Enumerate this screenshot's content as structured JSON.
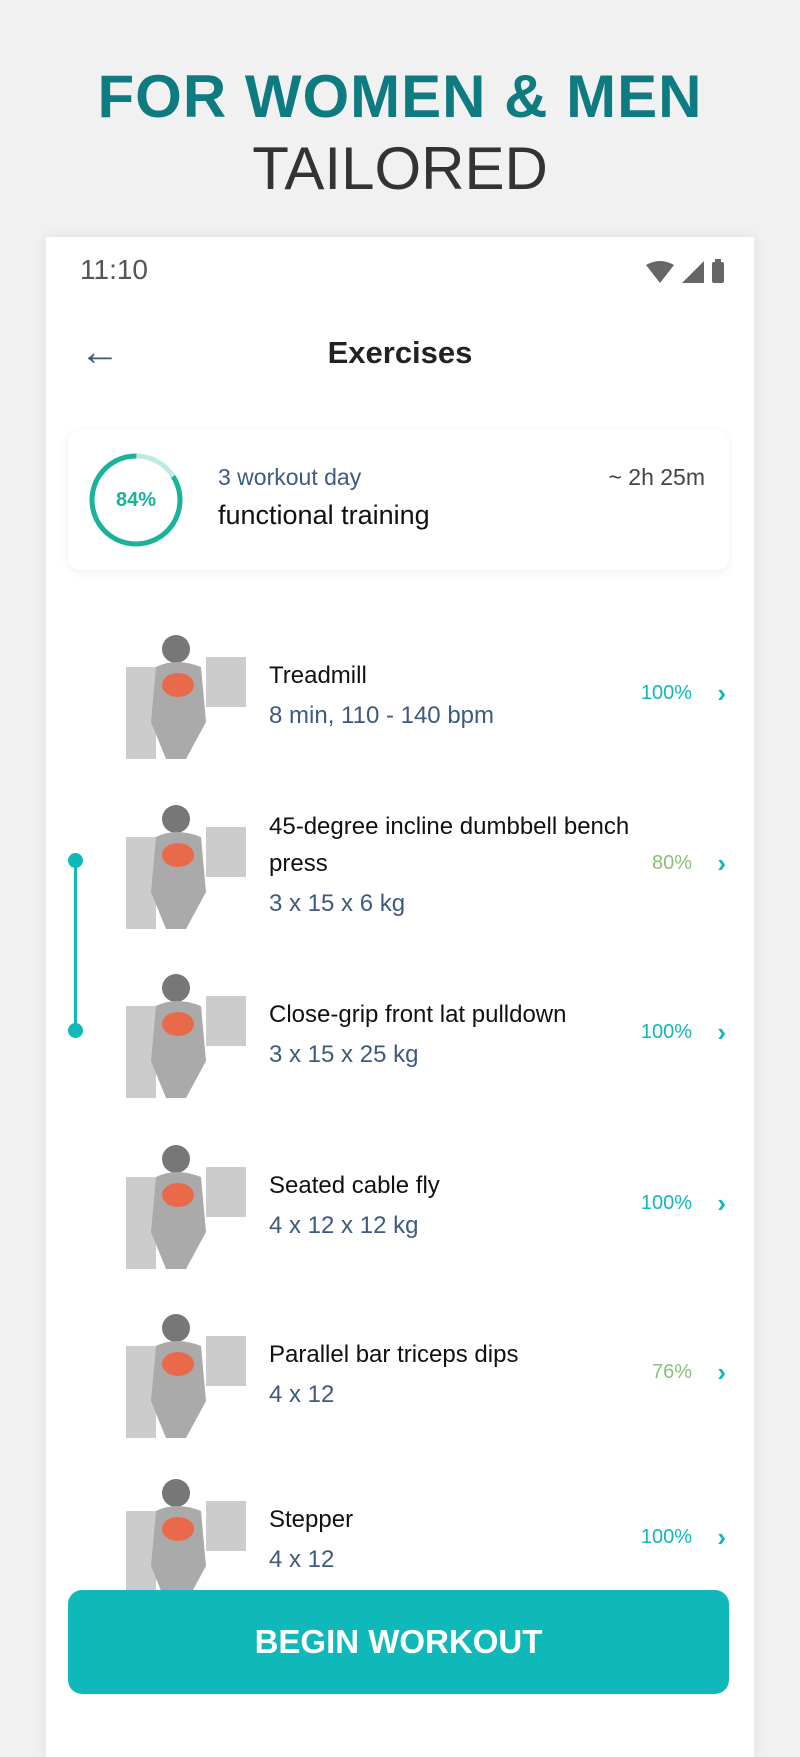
{
  "headline": {
    "line1": "FOR WOMEN & MEN",
    "line2": "TAILORED"
  },
  "status_bar": {
    "time": "11:10",
    "icons": [
      "wifi-icon",
      "signal-icon",
      "battery-icon"
    ]
  },
  "header": {
    "title": "Exercises",
    "back_icon": "arrow-left-icon"
  },
  "summary": {
    "progress_percent": 84,
    "progress_label": "84%",
    "subtitle": "3 workout day",
    "name": "functional training",
    "duration": "~ 2h 25m"
  },
  "exercises": [
    {
      "name": "Treadmill",
      "detail": "8 min, 110 - 140 bpm",
      "percent": "100%",
      "color": "#10b9b9"
    },
    {
      "name": "45-degree incline dumbbell bench press",
      "detail": "3 x 15 x 6 kg",
      "percent": "80%",
      "color": "#8cc07a"
    },
    {
      "name": "Close-grip front lat pulldown",
      "detail": "3 x 15 x 25 kg",
      "percent": "100%",
      "color": "#10b9b9"
    },
    {
      "name": "Seated cable fly",
      "detail": "4 x 12 x 12 kg",
      "percent": "100%",
      "color": "#10b9b9"
    },
    {
      "name": "Parallel bar triceps dips",
      "detail": "4 x 12",
      "percent": "76%",
      "color": "#8cc07a"
    },
    {
      "name": "Stepper",
      "detail": "4 x 12",
      "percent": "100%",
      "color": "#10b9b9"
    }
  ],
  "button": {
    "label": "BEGIN WORKOUT"
  },
  "colors": {
    "accent": "#10b9b9",
    "headline": "#0e7b80",
    "partial": "#8cc07a"
  }
}
